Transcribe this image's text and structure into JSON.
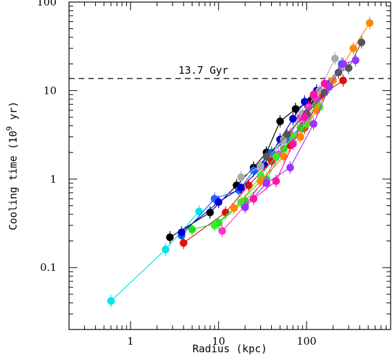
{
  "chart_data": {
    "type": "scatter",
    "xscale": "log",
    "yscale": "log",
    "xlim": [
      0.2,
      900
    ],
    "ylim": [
      0.02,
      100
    ],
    "xlabel": "Radius (kpc)",
    "ylabel_main": "Cooling time (10",
    "ylabel_sup": "9",
    "ylabel_unit": " yr)",
    "x_ticks": [
      1,
      10,
      100
    ],
    "x_tick_labels": [
      "1",
      "10",
      "100"
    ],
    "y_ticks": [
      0.1,
      1,
      10,
      100
    ],
    "y_tick_labels": [
      "0.1",
      "1",
      "10",
      "100"
    ],
    "annotation_text": "13.7 Gyr",
    "hline": 13.7,
    "series": [
      {
        "color": "#00e5e5",
        "x": [
          0.6,
          2.5,
          6
        ],
        "y": [
          0.042,
          0.16,
          0.43
        ]
      },
      {
        "color": "#000000",
        "x": [
          2.8,
          8,
          16,
          25,
          35,
          50,
          75,
          110
        ],
        "y": [
          0.22,
          0.42,
          0.85,
          1.35,
          2.0,
          4.5,
          6.2,
          7.5
        ]
      },
      {
        "color": "#1a66ff",
        "x": [
          3.8,
          9,
          17,
          25,
          40,
          60,
          90,
          130,
          180,
          250
        ],
        "y": [
          0.23,
          0.6,
          0.75,
          1.25,
          2.0,
          2.8,
          4.0,
          6.5,
          12,
          20
        ]
      },
      {
        "color": "#0000cc",
        "x": [
          3.8,
          10,
          18,
          33,
          50,
          70,
          95,
          130
        ],
        "y": [
          0.25,
          0.55,
          0.8,
          1.45,
          2.8,
          4.8,
          7.5,
          10
        ]
      },
      {
        "color": "#dd1111",
        "x": [
          4,
          12,
          22,
          40,
          65,
          95,
          150,
          260
        ],
        "y": [
          0.19,
          0.42,
          0.85,
          1.6,
          2.4,
          3.8,
          9,
          13
        ]
      },
      {
        "color": "#22dd22",
        "x": [
          5,
          10,
          20,
          35,
          55,
          85,
          130
        ],
        "y": [
          0.27,
          0.32,
          0.57,
          1.0,
          2.2,
          3.8,
          7
        ]
      },
      {
        "color": "#ff33cc",
        "x": [
          11,
          20,
          32,
          48,
          65,
          85,
          105,
          130
        ],
        "y": [
          0.26,
          0.5,
          0.95,
          1.9,
          3.2,
          5.0,
          6.5,
          8
        ]
      },
      {
        "color": "#33ee33",
        "x": [
          9,
          18,
          30,
          45,
          70,
          100,
          140
        ],
        "y": [
          0.3,
          0.55,
          1.1,
          1.8,
          3.0,
          4.2,
          6.5
        ]
      },
      {
        "color": "#ff8800",
        "x": [
          15,
          30,
          55,
          85,
          130,
          200,
          340,
          520
        ],
        "y": [
          0.47,
          0.95,
          1.8,
          3.0,
          6.0,
          13,
          30,
          58
        ]
      },
      {
        "color": "#aaaaaa",
        "x": [
          18,
          30,
          55,
          90,
          140,
          210
        ],
        "y": [
          1.05,
          1.4,
          2.8,
          5.5,
          10,
          23
        ]
      },
      {
        "color": "#555555",
        "x": [
          35,
          60,
          100,
          160,
          230,
          300,
          420
        ],
        "y": [
          1.8,
          3.2,
          5.5,
          9.5,
          16,
          18,
          35
        ]
      },
      {
        "color": "#9933ff",
        "x": [
          20,
          35,
          65,
          120,
          180,
          260,
          360
        ],
        "y": [
          0.48,
          0.9,
          1.35,
          4.2,
          11,
          20,
          22
        ]
      },
      {
        "color": "#ff11aa",
        "x": [
          25,
          45,
          70,
          95,
          120,
          160
        ],
        "y": [
          0.6,
          0.95,
          2.5,
          5.0,
          9.0,
          12
        ]
      }
    ]
  }
}
